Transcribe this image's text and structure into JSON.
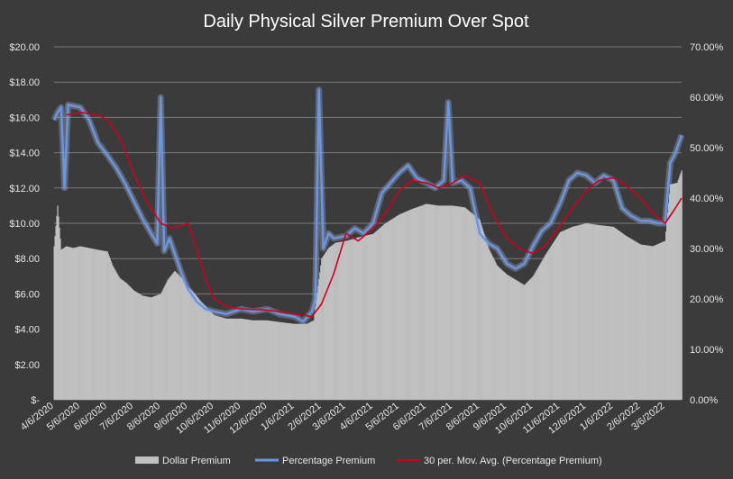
{
  "colors": {
    "background": "#3b3b3b",
    "bars": "#c0c0c0",
    "percentage_line": "#6f95d9",
    "percentage_glow": "#9fb8ee",
    "moving_average": "#cc0020",
    "grid": "#7a7a7a",
    "text": "#e6e6e6"
  },
  "chart_data": {
    "type": "bar",
    "title": "Daily Physical Silver Premium Over Spot",
    "grid": true,
    "legend_position": "bottom",
    "y_left": {
      "range": [
        0,
        20
      ],
      "ticks": [
        0,
        2,
        4,
        6,
        8,
        10,
        12,
        14,
        16,
        18,
        20
      ],
      "tick_labels": [
        "$-",
        "$2.00",
        "$4.00",
        "$6.00",
        "$8.00",
        "$10.00",
        "$12.00",
        "$14.00",
        "$16.00",
        "$18.00",
        "$20.00"
      ]
    },
    "y_right": {
      "range": [
        0,
        70
      ],
      "ticks": [
        0,
        10,
        20,
        30,
        40,
        50,
        60,
        70
      ],
      "tick_labels": [
        "0.00%",
        "10.00%",
        "20.00%",
        "30.00%",
        "40.00%",
        "50.00%",
        "60.00%",
        "70.00%"
      ]
    },
    "x": {
      "start": "2020-04-06",
      "end": "2022-03-25",
      "ticks": [
        "2020-04-06",
        "2020-05-06",
        "2020-06-06",
        "2020-07-06",
        "2020-08-06",
        "2020-09-06",
        "2020-10-06",
        "2020-11-06",
        "2020-12-06",
        "2021-01-06",
        "2021-02-06",
        "2021-03-06",
        "2021-04-06",
        "2021-05-06",
        "2021-06-06",
        "2021-07-06",
        "2021-08-06",
        "2021-09-06",
        "2021-10-06",
        "2021-11-06",
        "2021-12-06",
        "2022-01-06",
        "2022-02-06",
        "2022-03-06"
      ],
      "tick_labels": [
        "4/6/2020",
        "5/6/2020",
        "6/6/2020",
        "7/6/2020",
        "8/6/2020",
        "9/6/2020",
        "10/6/2020",
        "11/6/2020",
        "12/6/2020",
        "1/6/2021",
        "2/6/2021",
        "3/6/2021",
        "4/6/2021",
        "5/6/2021",
        "6/6/2021",
        "7/6/2021",
        "8/6/2021",
        "9/6/2021",
        "10/6/2021",
        "11/6/2021",
        "12/6/2021",
        "1/6/2022",
        "2/6/2022",
        "3/6/2022"
      ]
    },
    "series": [
      {
        "name": "Dollar Premium",
        "type": "bar",
        "axis": "left",
        "points": [
          [
            "2020-04-06",
            8.7
          ],
          [
            "2020-04-10",
            11.0
          ],
          [
            "2020-04-14",
            8.5
          ],
          [
            "2020-04-20",
            8.7
          ],
          [
            "2020-04-28",
            8.6
          ],
          [
            "2020-05-06",
            8.7
          ],
          [
            "2020-05-16",
            8.6
          ],
          [
            "2020-05-26",
            8.5
          ],
          [
            "2020-06-06",
            8.4
          ],
          [
            "2020-06-12",
            7.6
          ],
          [
            "2020-06-20",
            6.9
          ],
          [
            "2020-06-28",
            6.6
          ],
          [
            "2020-07-06",
            6.2
          ],
          [
            "2020-07-16",
            5.9
          ],
          [
            "2020-07-26",
            5.8
          ],
          [
            "2020-08-06",
            6.0
          ],
          [
            "2020-08-14",
            6.8
          ],
          [
            "2020-08-22",
            7.3
          ],
          [
            "2020-08-30",
            6.9
          ],
          [
            "2020-09-06",
            6.4
          ],
          [
            "2020-09-14",
            6.0
          ],
          [
            "2020-09-22",
            5.5
          ],
          [
            "2020-10-06",
            4.8
          ],
          [
            "2020-10-20",
            4.6
          ],
          [
            "2020-11-06",
            4.6
          ],
          [
            "2020-11-20",
            4.5
          ],
          [
            "2020-12-06",
            4.5
          ],
          [
            "2020-12-20",
            4.4
          ],
          [
            "2021-01-06",
            4.3
          ],
          [
            "2021-01-20",
            4.3
          ],
          [
            "2021-01-28",
            4.5
          ],
          [
            "2021-02-06",
            8.0
          ],
          [
            "2021-02-14",
            8.6
          ],
          [
            "2021-02-22",
            8.9
          ],
          [
            "2021-03-06",
            9.0
          ],
          [
            "2021-03-20",
            9.2
          ],
          [
            "2021-04-06",
            9.4
          ],
          [
            "2021-04-20",
            10.0
          ],
          [
            "2021-05-06",
            10.5
          ],
          [
            "2021-05-20",
            10.8
          ],
          [
            "2021-06-06",
            11.1
          ],
          [
            "2021-06-20",
            11.0
          ],
          [
            "2021-07-06",
            11.0
          ],
          [
            "2021-07-20",
            10.9
          ],
          [
            "2021-08-06",
            10.2
          ],
          [
            "2021-08-16",
            8.6
          ],
          [
            "2021-08-26",
            7.6
          ],
          [
            "2021-09-06",
            7.1
          ],
          [
            "2021-09-16",
            6.8
          ],
          [
            "2021-09-26",
            6.5
          ],
          [
            "2021-10-06",
            7.0
          ],
          [
            "2021-10-20",
            8.2
          ],
          [
            "2021-11-06",
            9.5
          ],
          [
            "2021-11-20",
            9.8
          ],
          [
            "2021-12-06",
            10.0
          ],
          [
            "2021-12-20",
            9.9
          ],
          [
            "2022-01-06",
            9.8
          ],
          [
            "2022-01-20",
            9.3
          ],
          [
            "2022-02-06",
            8.8
          ],
          [
            "2022-02-20",
            8.7
          ],
          [
            "2022-03-06",
            9.0
          ],
          [
            "2022-03-12",
            12.2
          ],
          [
            "2022-03-20",
            12.3
          ],
          [
            "2022-03-25",
            13.0
          ]
        ]
      },
      {
        "name": "Percentage Premium",
        "type": "line",
        "axis": "right",
        "points": [
          [
            "2020-04-06",
            55.5
          ],
          [
            "2020-04-10",
            57.0
          ],
          [
            "2020-04-14",
            58.0
          ],
          [
            "2020-04-18",
            42.0
          ],
          [
            "2020-04-22",
            58.5
          ],
          [
            "2020-05-06",
            58.0
          ],
          [
            "2020-05-16",
            55.5
          ],
          [
            "2020-05-26",
            51.0
          ],
          [
            "2020-06-06",
            48.5
          ],
          [
            "2020-06-16",
            46.0
          ],
          [
            "2020-06-26",
            43.0
          ],
          [
            "2020-07-06",
            39.5
          ],
          [
            "2020-07-16",
            36.0
          ],
          [
            "2020-07-26",
            33.0
          ],
          [
            "2020-08-02",
            31.0
          ],
          [
            "2020-08-06",
            60.0
          ],
          [
            "2020-08-10",
            29.5
          ],
          [
            "2020-08-16",
            32.0
          ],
          [
            "2020-08-22",
            29.0
          ],
          [
            "2020-08-30",
            25.0
          ],
          [
            "2020-09-06",
            22.0
          ],
          [
            "2020-09-16",
            19.5
          ],
          [
            "2020-09-26",
            18.0
          ],
          [
            "2020-10-06",
            17.5
          ],
          [
            "2020-10-20",
            17.0
          ],
          [
            "2020-11-06",
            18.0
          ],
          [
            "2020-11-20",
            17.5
          ],
          [
            "2020-12-06",
            18.0
          ],
          [
            "2020-12-20",
            17.0
          ],
          [
            "2021-01-06",
            16.5
          ],
          [
            "2021-01-16",
            15.5
          ],
          [
            "2021-01-26",
            17.5
          ],
          [
            "2021-01-30",
            20.0
          ],
          [
            "2021-02-03",
            61.5
          ],
          [
            "2021-02-08",
            30.0
          ],
          [
            "2021-02-14",
            33.0
          ],
          [
            "2021-02-20",
            32.0
          ],
          [
            "2021-03-06",
            32.5
          ],
          [
            "2021-03-16",
            34.0
          ],
          [
            "2021-03-26",
            33.0
          ],
          [
            "2021-04-06",
            35.0
          ],
          [
            "2021-04-16",
            41.0
          ],
          [
            "2021-04-26",
            43.0
          ],
          [
            "2021-05-06",
            45.0
          ],
          [
            "2021-05-16",
            46.5
          ],
          [
            "2021-05-26",
            44.0
          ],
          [
            "2021-06-06",
            43.0
          ],
          [
            "2021-06-16",
            42.0
          ],
          [
            "2021-06-26",
            43.5
          ],
          [
            "2021-07-01",
            59.0
          ],
          [
            "2021-07-06",
            43.0
          ],
          [
            "2021-07-16",
            43.5
          ],
          [
            "2021-07-26",
            42.0
          ],
          [
            "2021-08-06",
            33.0
          ],
          [
            "2021-08-16",
            31.0
          ],
          [
            "2021-08-26",
            30.0
          ],
          [
            "2021-09-06",
            27.0
          ],
          [
            "2021-09-16",
            26.0
          ],
          [
            "2021-09-26",
            27.0
          ],
          [
            "2021-10-06",
            30.5
          ],
          [
            "2021-10-16",
            33.5
          ],
          [
            "2021-10-26",
            35.0
          ],
          [
            "2021-11-06",
            39.0
          ],
          [
            "2021-11-16",
            43.5
          ],
          [
            "2021-11-26",
            45.0
          ],
          [
            "2021-12-06",
            44.5
          ],
          [
            "2021-12-16",
            43.0
          ],
          [
            "2021-12-26",
            44.5
          ],
          [
            "2022-01-06",
            43.5
          ],
          [
            "2022-01-16",
            38.0
          ],
          [
            "2022-01-26",
            36.5
          ],
          [
            "2022-02-06",
            35.5
          ],
          [
            "2022-02-16",
            35.5
          ],
          [
            "2022-02-26",
            35.0
          ],
          [
            "2022-03-06",
            35.0
          ],
          [
            "2022-03-12",
            47.0
          ],
          [
            "2022-03-18",
            49.0
          ],
          [
            "2022-03-25",
            52.5
          ]
        ]
      },
      {
        "name": "30 per. Mov. Avg. (Percentage Premium)",
        "type": "line",
        "axis": "right",
        "points": [
          [
            "2020-04-20",
            56.5
          ],
          [
            "2020-05-06",
            57.0
          ],
          [
            "2020-05-26",
            56.5
          ],
          [
            "2020-06-06",
            55.5
          ],
          [
            "2020-06-20",
            52.0
          ],
          [
            "2020-07-06",
            45.0
          ],
          [
            "2020-07-20",
            39.5
          ],
          [
            "2020-08-06",
            35.0
          ],
          [
            "2020-08-20",
            34.0
          ],
          [
            "2020-09-06",
            35.0
          ],
          [
            "2020-09-16",
            30.0
          ],
          [
            "2020-09-26",
            24.0
          ],
          [
            "2020-10-06",
            20.0
          ],
          [
            "2020-10-20",
            18.5
          ],
          [
            "2020-11-06",
            18.0
          ],
          [
            "2020-12-06",
            17.8
          ],
          [
            "2021-01-06",
            17.0
          ],
          [
            "2021-01-26",
            16.5
          ],
          [
            "2021-02-06",
            19.0
          ],
          [
            "2021-02-20",
            25.0
          ],
          [
            "2021-03-06",
            33.0
          ],
          [
            "2021-03-20",
            31.5
          ],
          [
            "2021-04-06",
            34.0
          ],
          [
            "2021-04-20",
            37.0
          ],
          [
            "2021-05-06",
            41.5
          ],
          [
            "2021-05-20",
            43.5
          ],
          [
            "2021-06-06",
            43.0
          ],
          [
            "2021-06-20",
            42.0
          ],
          [
            "2021-07-06",
            43.0
          ],
          [
            "2021-07-20",
            44.5
          ],
          [
            "2021-08-06",
            43.0
          ],
          [
            "2021-08-20",
            37.0
          ],
          [
            "2021-09-06",
            32.0
          ],
          [
            "2021-09-20",
            30.0
          ],
          [
            "2021-10-06",
            29.0
          ],
          [
            "2021-10-20",
            30.5
          ],
          [
            "2021-11-06",
            34.5
          ],
          [
            "2021-11-20",
            38.0
          ],
          [
            "2021-12-06",
            41.5
          ],
          [
            "2021-12-20",
            43.5
          ],
          [
            "2022-01-06",
            44.0
          ],
          [
            "2022-01-20",
            42.5
          ],
          [
            "2022-02-06",
            40.0
          ],
          [
            "2022-02-20",
            37.0
          ],
          [
            "2022-03-06",
            35.0
          ],
          [
            "2022-03-16",
            37.5
          ],
          [
            "2022-03-25",
            40.0
          ]
        ]
      }
    ]
  }
}
